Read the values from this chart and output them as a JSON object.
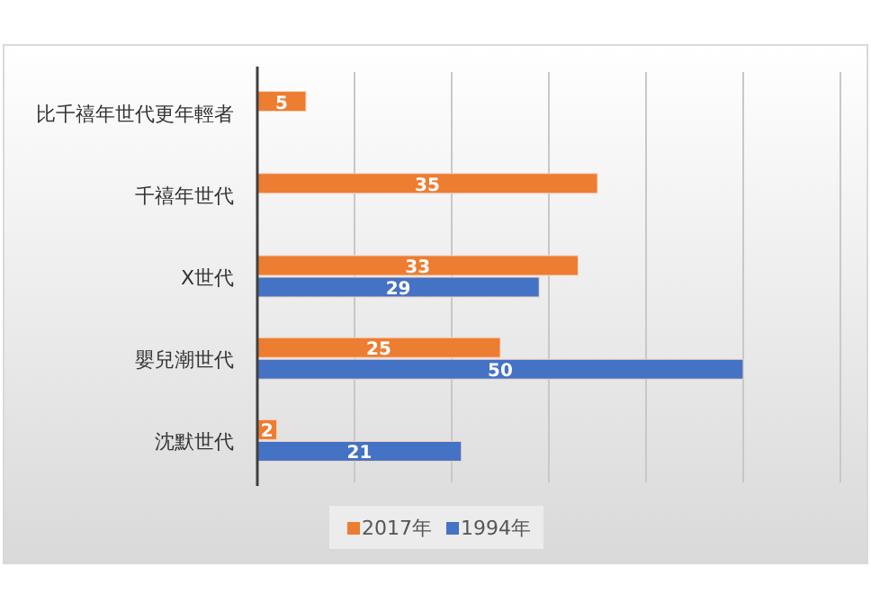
{
  "chart_data": {
    "type": "bar",
    "orientation": "horizontal",
    "categories": [
      "比千禧年世代更年輕者",
      "千禧年世代",
      "X世代",
      "嬰兒潮世代",
      "沈默世代"
    ],
    "series": [
      {
        "name": "2017年",
        "color": "#ed7d31",
        "values": [
          5,
          35,
          33,
          25,
          2
        ]
      },
      {
        "name": "1994年",
        "color": "#4472c4",
        "values": [
          null,
          null,
          29,
          50,
          21
        ]
      }
    ],
    "xlim": [
      0,
      60
    ],
    "xticks": [
      {
        "value": 0,
        "label": null
      },
      {
        "value": 10,
        "label": null
      },
      {
        "value": 20,
        "label": null
      },
      {
        "value": 30,
        "label": null
      },
      {
        "value": 40,
        "label": null
      },
      {
        "value": 50,
        "label": null
      },
      {
        "value": 60,
        "label": null
      }
    ],
    "grid": "x",
    "legend": "bottom",
    "data_labels": true
  }
}
